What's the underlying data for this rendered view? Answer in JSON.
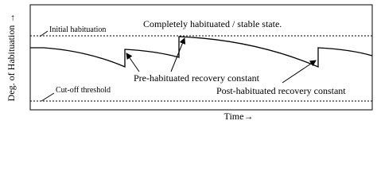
{
  "axes": {
    "y_label": "Deg. of Habituation →",
    "x_label": "Time→"
  },
  "annotations": {
    "initial": "Initial habituation",
    "stable": "Completely habituated / stable state.",
    "pre": "Pre-habituated recovery constant",
    "post": "Post-habituated recovery constant",
    "cutoff": "Cut-off threshold"
  }
}
